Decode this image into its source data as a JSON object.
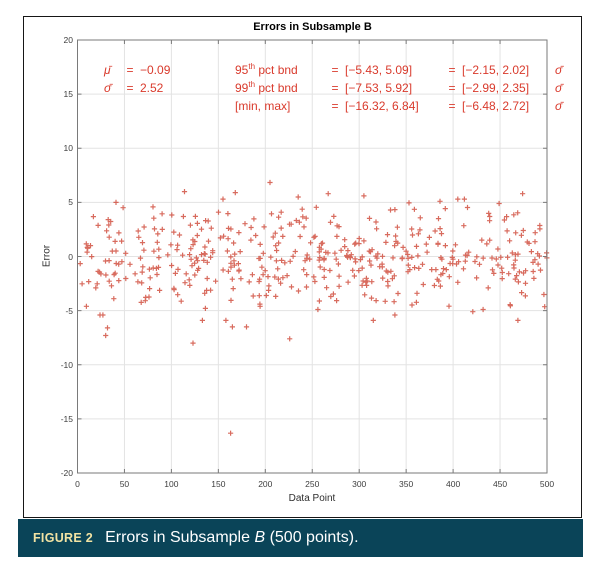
{
  "figure": {
    "title": "Errors in Subsample B",
    "x_label": "Data Point",
    "y_label": "Error",
    "stats": {
      "mu": {
        "symbol": "μ̄",
        "eq": "=",
        "value": "−0.09"
      },
      "sigma": {
        "symbol": "σ̄",
        "eq": "=",
        "value": "2.52"
      },
      "bounds": [
        {
          "name": "95",
          "sup": "th",
          "name_rest": " pct bnd",
          "eq1": "=",
          "abs": "[−5.43, 5.09]",
          "eq2": "=",
          "rel": "[−2.15, 2.02]",
          "sigma": "σ̄"
        },
        {
          "name": "99",
          "sup": "th",
          "name_rest": " pct bnd",
          "eq1": "=",
          "abs": "[−7.53, 5.92]",
          "eq2": "=",
          "rel": "[−2.99, 2.35]",
          "sigma": "σ̄"
        },
        {
          "name": "",
          "sup": "",
          "name_rest": "[min, max]",
          "eq1": "=",
          "abs": "[−16.32, 6.84]",
          "eq2": "=",
          "rel": "[−6.48, 2.72]",
          "sigma": "σ̄"
        }
      ]
    }
  },
  "caption": {
    "label": "FIGURE 2",
    "text_before": "Errors in Subsample ",
    "text_italic": "B",
    "text_after": " (500 points)."
  },
  "colors": {
    "marker": "#d04a3a",
    "annotation": "#d93a2c",
    "grid": "#e3e3e3",
    "axis_box": "#7a7a7a",
    "caption_bar_bg": "#0a4458",
    "caption_label": "#f2e3a3",
    "caption_text": "#ffffff"
  },
  "chart_data": {
    "type": "scatter",
    "title": "Errors in Subsample B",
    "xlabel": "Data Point",
    "ylabel": "Error",
    "xlim": [
      0,
      500
    ],
    "ylim": [
      -20,
      20
    ],
    "x_ticks": [
      0,
      50,
      100,
      150,
      200,
      250,
      300,
      350,
      400,
      450,
      500
    ],
    "y_ticks": [
      -20,
      -15,
      -10,
      -5,
      0,
      5,
      10,
      15,
      20
    ],
    "grid": true,
    "legend": null,
    "marker": "+",
    "marker_color": "#d04a3a",
    "n_points": 500,
    "stats_shown": {
      "mean": -0.09,
      "std": 2.52,
      "pct95_bound": [
        -5.43,
        5.09
      ],
      "pct95_bound_sigma": [
        -2.15,
        2.02
      ],
      "pct99_bound": [
        -7.53,
        5.92
      ],
      "pct99_bound_sigma": [
        -2.99,
        2.35
      ],
      "min": -16.32,
      "max": 6.84,
      "minmax_sigma": [
        -6.48,
        2.72
      ]
    },
    "extreme_points": [
      [
        24,
        -5.4
      ],
      [
        27,
        -5.4
      ],
      [
        30,
        -7.3
      ],
      [
        32,
        -6.6
      ],
      [
        41,
        5.0
      ],
      [
        114,
        6.0
      ],
      [
        123,
        -8.0
      ],
      [
        133,
        -5.9
      ],
      [
        155,
        5.3
      ],
      [
        158,
        -5.9
      ],
      [
        163,
        -16.32
      ],
      [
        165,
        -6.5
      ],
      [
        168,
        5.9
      ],
      [
        180,
        -6.5
      ],
      [
        205,
        6.84
      ],
      [
        226,
        -7.6
      ],
      [
        235,
        5.5
      ],
      [
        256,
        -4.9
      ],
      [
        267,
        5.8
      ],
      [
        305,
        5.6
      ],
      [
        315,
        -5.9
      ],
      [
        338,
        -5.4
      ],
      [
        353,
        4.95
      ],
      [
        386,
        5.1
      ],
      [
        405,
        5.3
      ],
      [
        412,
        5.3
      ],
      [
        421,
        -5.1
      ],
      [
        432,
        -4.9
      ],
      [
        449,
        4.9
      ],
      [
        469,
        -5.9
      ],
      [
        474,
        5.8
      ]
    ],
    "generator": {
      "seed": 20,
      "bulk_mean": -0.1,
      "bulk_std": 2.45,
      "bulk_limit": 4.8
    }
  }
}
